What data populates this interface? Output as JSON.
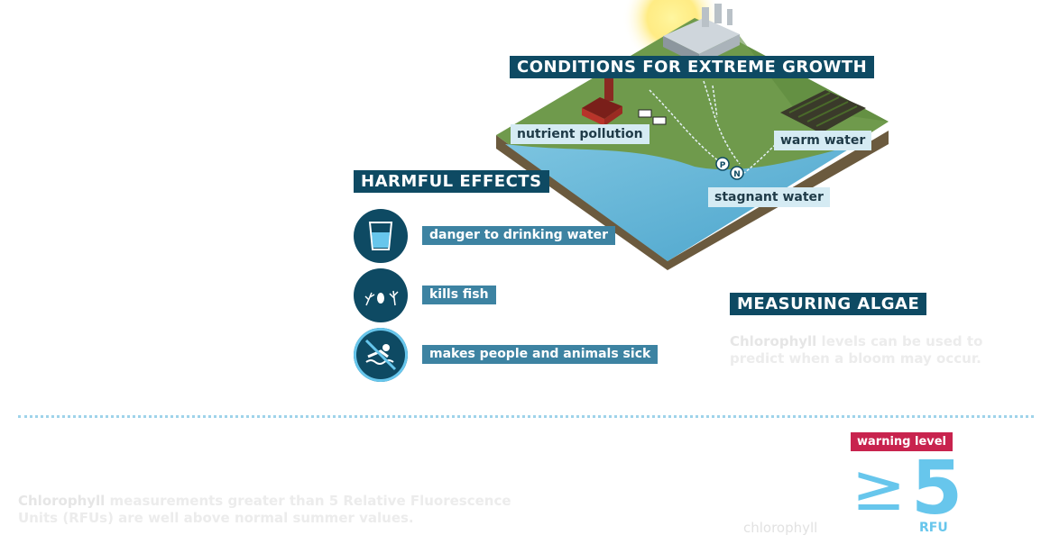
{
  "conditions": {
    "title": "CONDITIONS FOR EXTREME GROWTH",
    "nutrient": "nutrient pollution",
    "warm": "warm water",
    "stagnant": "stagnant  water",
    "p_marker": "P",
    "n_marker": "N"
  },
  "effects": {
    "title": "HARMFUL EFFECTS",
    "items": [
      {
        "label": "danger to drinking water",
        "icon": "drinking-glass-icon"
      },
      {
        "label": "kills fish",
        "icon": "dead-fish-plants-icon"
      },
      {
        "label": "makes people and animals sick",
        "icon": "no-swimming-icon"
      }
    ]
  },
  "measuring": {
    "title": "MEASURING ALGAE",
    "desc_bold": "Chlorophyll",
    "desc_rest": " levels can be used to predict when a bloom may occur."
  },
  "footer": {
    "desc_bold": "Chlorophyll",
    "desc_rest": " measurements greater than 5 Relative Fluorescence Units (RFUs) are well above normal summer values.",
    "warning_label": "warning level",
    "symbol": "≥",
    "value": "5",
    "unit": "RFU",
    "chlorophyll_label": "chlorophyll"
  },
  "colors": {
    "header_bg": "#0e4a63",
    "teal_label": "#3d83a2",
    "light_label": "#d5ebf3",
    "warning": "#c8234e",
    "accent": "#67c6ec"
  }
}
